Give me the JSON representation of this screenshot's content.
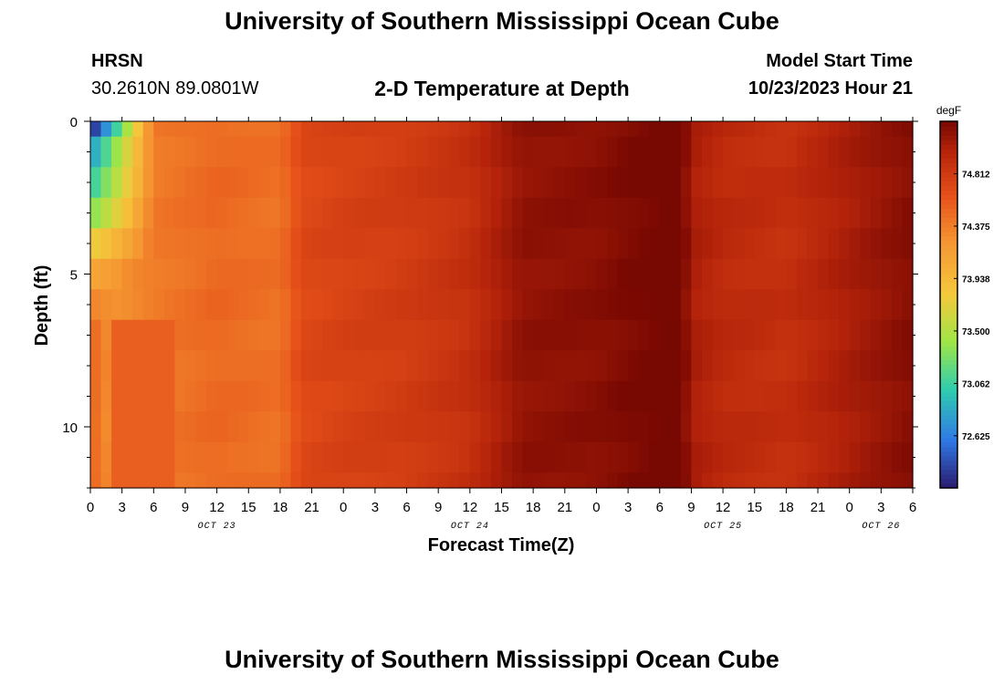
{
  "header": {
    "title": "University of Southern Mississippi Ocean Cube",
    "station": "HRSN",
    "coords": "30.2610N  89.0801W",
    "model_label": "Model Start Time",
    "model_time": "10/23/2023 Hour 21",
    "subtitle": "2-D Temperature at Depth"
  },
  "footer": {
    "title": "University of Southern Mississippi Ocean Cube"
  },
  "colors": {
    "low": "#2a1a6e",
    "mid_low": "#2f9be6",
    "mid": "#2fd1a0",
    "mid_high": "#f7c83c",
    "high": "#e8521a",
    "max": "#7a0a02"
  },
  "chart_data": {
    "type": "heatmap",
    "title": "2-D Temperature at Depth",
    "xlabel": "Forecast Time(Z)",
    "ylabel": "Depth (ft)",
    "x_tick_labels": [
      "0",
      "3",
      "6",
      "9",
      "12",
      "15",
      "18",
      "21",
      "0",
      "3",
      "6",
      "9",
      "12",
      "15",
      "18",
      "21",
      "0",
      "3",
      "6",
      "9",
      "12",
      "15",
      "18",
      "21",
      "0",
      "3",
      "6"
    ],
    "x_hours": [
      0,
      3,
      6,
      9,
      12,
      15,
      18,
      21,
      24,
      27,
      30,
      33,
      36,
      39,
      42,
      45,
      48,
      51,
      54,
      57,
      60,
      63,
      66,
      69,
      72,
      75,
      78
    ],
    "xlim": [
      0,
      78
    ],
    "date_labels": [
      {
        "text": "OCT 23",
        "hour": 12
      },
      {
        "text": "OCT 24",
        "hour": 36
      },
      {
        "text": "OCT 25",
        "hour": 60
      },
      {
        "text": "OCT 26",
        "hour": 75
      }
    ],
    "y_tick_labels": [
      "0",
      "5",
      "10"
    ],
    "y_ticks": [
      0,
      5,
      10
    ],
    "ylim": [
      12,
      0
    ],
    "colorbar": {
      "unit": "degF",
      "ticks": [
        "72.625",
        "73.062",
        "73.500",
        "73.938",
        "74.375",
        "74.812"
      ],
      "tick_values": [
        72.625,
        73.062,
        73.5,
        73.938,
        74.375,
        74.812
      ],
      "range": [
        72.19,
        75.25
      ]
    },
    "depth_bands_ft": [
      0,
      0.5,
      1.5,
      2.5,
      3.5,
      4.5,
      5.5,
      6.5,
      7.5,
      8.5,
      9.5,
      10.5,
      11.5,
      12
    ],
    "time_profile": {
      "hours": [
        0,
        6,
        12,
        18,
        20,
        24,
        30,
        36,
        39,
        41,
        48,
        56,
        57,
        60,
        66,
        72,
        78
      ],
      "temps": [
        74.2,
        74.4,
        74.5,
        74.45,
        74.7,
        74.75,
        74.8,
        74.9,
        75.05,
        75.15,
        75.18,
        75.3,
        75.05,
        74.95,
        74.9,
        75.05,
        75.2
      ]
    },
    "surface_cool": {
      "depth_ft": [
        0.25,
        1,
        2,
        3,
        4,
        5,
        6,
        7
      ],
      "min_temp": [
        72.2,
        72.75,
        73.0,
        73.3,
        73.75,
        74.1,
        74.35,
        74.55
      ],
      "extent_hours": [
        6,
        6,
        6,
        6,
        6,
        4,
        3,
        2
      ]
    }
  }
}
